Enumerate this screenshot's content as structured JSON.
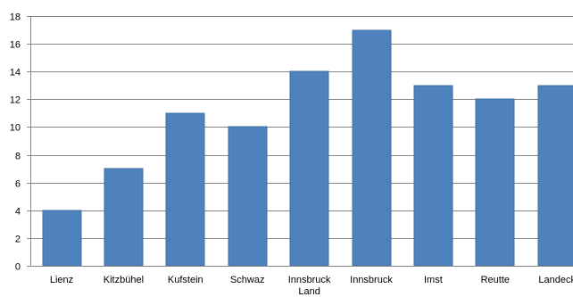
{
  "chart_data": {
    "type": "bar",
    "categories": [
      "Lienz",
      "Kitzbühel",
      "Kufstein",
      "Schwaz",
      "Innsbruck Land",
      "Innsbruck",
      "Imst",
      "Reutte",
      "Landeck"
    ],
    "category_label_lines": [
      [
        "Lienz"
      ],
      [
        "Kitzbühel"
      ],
      [
        "Kufstein"
      ],
      [
        "Schwaz"
      ],
      [
        "Innsbruck",
        "Land"
      ],
      [
        "Innsbruck"
      ],
      [
        "Imst"
      ],
      [
        "Reutte"
      ],
      [
        "Landeck"
      ]
    ],
    "series": [
      {
        "values": [
          4,
          7,
          11,
          10,
          14,
          17,
          13,
          12,
          13
        ]
      }
    ],
    "title": "",
    "xlabel": "",
    "ylabel": "",
    "ylim": [
      0,
      18
    ],
    "yticks": [
      "0",
      "2",
      "4",
      "6",
      "8",
      "10",
      "12",
      "14",
      "16",
      "18"
    ],
    "grid": true,
    "legend": "none",
    "bar_color": "#4f81bd",
    "grid_color": "#868686"
  }
}
